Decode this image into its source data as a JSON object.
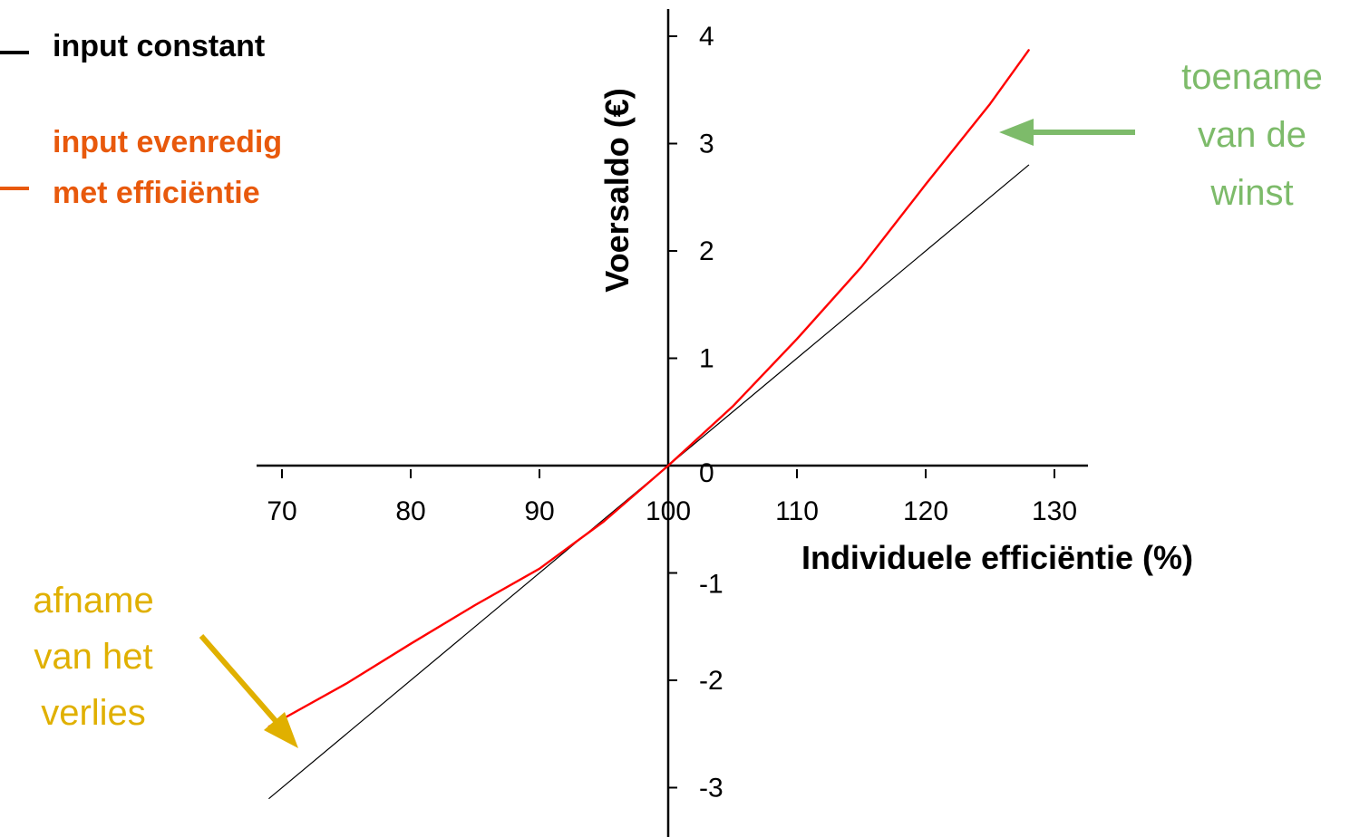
{
  "chart_data": {
    "type": "line",
    "title": "",
    "xlabel": "Individuele efficiëntie (%)",
    "ylabel": "Voersaldo (€)",
    "xlim": [
      68,
      133
    ],
    "ylim": [
      -3.3,
      4.2
    ],
    "x_ticks": [
      70,
      80,
      90,
      100,
      110,
      120,
      130
    ],
    "y_ticks": [
      -3,
      -2,
      -1,
      0,
      1,
      2,
      3,
      4
    ],
    "grid": false,
    "legend_position": "top-left",
    "series": [
      {
        "name": "input constant",
        "color": "#000000",
        "x": [
          69,
          128
        ],
        "y": [
          -3.1,
          2.8
        ]
      },
      {
        "name": "input evenredig met efficiëntie",
        "color": "#ff0000",
        "x": [
          69,
          75,
          80,
          85,
          90,
          95,
          100,
          105,
          110,
          115,
          120,
          125,
          128
        ],
        "y": [
          -2.43,
          -2.03,
          -1.66,
          -1.3,
          -0.96,
          -0.52,
          0,
          0.55,
          1.18,
          1.85,
          2.62,
          3.37,
          3.87
        ]
      }
    ]
  },
  "legend": {
    "items": [
      {
        "label_line1": "input constant",
        "label_line2": "",
        "color": "#000000"
      },
      {
        "label_line1": "input evenredig",
        "label_line2": "met efficiëntie",
        "color": "#e8590c"
      }
    ]
  },
  "annotations": {
    "gain": {
      "lines": [
        "toename",
        "van de",
        "winst"
      ],
      "color": "#7dbb6a"
    },
    "loss": {
      "lines": [
        "afname",
        "van het",
        "verlies"
      ],
      "color": "#e0b000"
    }
  }
}
